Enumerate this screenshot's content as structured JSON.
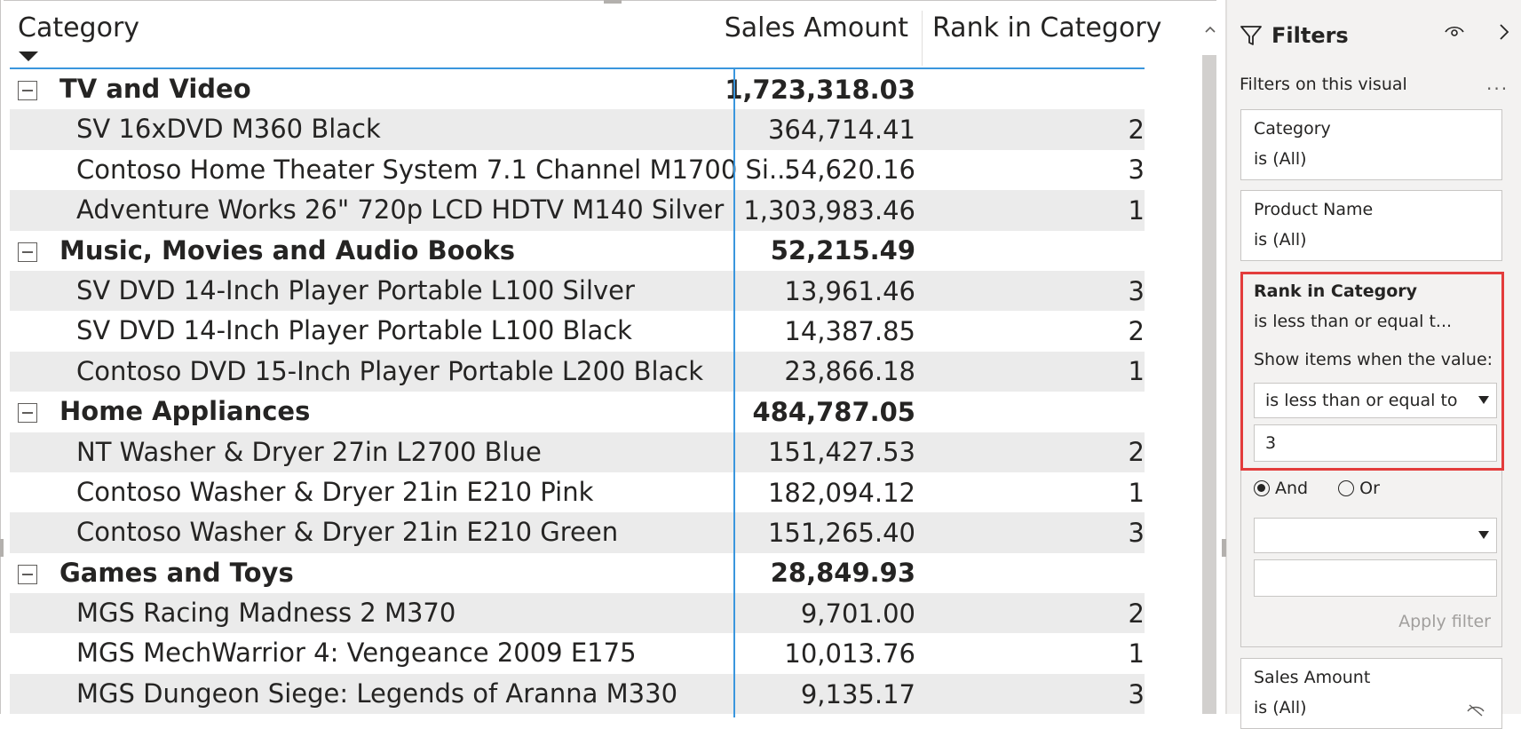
{
  "matrix": {
    "headers": {
      "category": "Category",
      "sales": "Sales Amount",
      "rank": "Rank in Category"
    },
    "rows": [
      {
        "type": "group",
        "name": "TV and Video",
        "sales": "1,723,318.03",
        "rank": ""
      },
      {
        "type": "item",
        "name": "SV 16xDVD M360 Black",
        "sales": "364,714.41",
        "rank": "2"
      },
      {
        "type": "item",
        "name": "Contoso Home Theater System 7.1 Channel M1700 Si...",
        "sales": "54,620.16",
        "rank": "3"
      },
      {
        "type": "item",
        "name": "Adventure Works 26\" 720p LCD HDTV M140 Silver",
        "sales": "1,303,983.46",
        "rank": "1"
      },
      {
        "type": "group",
        "name": "Music, Movies and Audio Books",
        "sales": "52,215.49",
        "rank": ""
      },
      {
        "type": "item",
        "name": "SV DVD 14-Inch Player Portable L100 Silver",
        "sales": "13,961.46",
        "rank": "3"
      },
      {
        "type": "item",
        "name": "SV DVD 14-Inch Player Portable L100 Black",
        "sales": "14,387.85",
        "rank": "2"
      },
      {
        "type": "item",
        "name": "Contoso DVD 15-Inch Player Portable L200 Black",
        "sales": "23,866.18",
        "rank": "1"
      },
      {
        "type": "group",
        "name": "Home Appliances",
        "sales": "484,787.05",
        "rank": ""
      },
      {
        "type": "item",
        "name": "NT Washer & Dryer 27in L2700 Blue",
        "sales": "151,427.53",
        "rank": "2"
      },
      {
        "type": "item",
        "name": "Contoso Washer & Dryer 21in E210 Pink",
        "sales": "182,094.12",
        "rank": "1"
      },
      {
        "type": "item",
        "name": "Contoso Washer & Dryer 21in E210 Green",
        "sales": "151,265.40",
        "rank": "3"
      },
      {
        "type": "group",
        "name": "Games and Toys",
        "sales": "28,849.93",
        "rank": ""
      },
      {
        "type": "item",
        "name": "MGS Racing Madness 2 M370",
        "sales": "9,701.00",
        "rank": "2"
      },
      {
        "type": "item",
        "name": "MGS MechWarrior 4: Vengeance 2009 E175",
        "sales": "10,013.76",
        "rank": "1"
      },
      {
        "type": "item",
        "name": "MGS Dungeon Siege: Legends of Aranna M330",
        "sales": "9,135.17",
        "rank": "3"
      }
    ],
    "accent_color": "#3a96dd"
  },
  "filters": {
    "title": "Filters",
    "subtitle": "Filters on this visual",
    "more": "...",
    "cards": {
      "category": {
        "field": "Category",
        "state": "is (All)"
      },
      "product": {
        "field": "Product Name",
        "state": "is (All)"
      },
      "rank": {
        "field": "Rank in Category",
        "state": "is less than or equal t...",
        "show_label": "Show items when the value:",
        "condition": "is less than or equal to",
        "value": "3",
        "and_label": "And",
        "or_label": "Or",
        "condition2": "",
        "value2": "",
        "apply": "Apply filter"
      },
      "sales": {
        "field": "Sales Amount",
        "state": "is (All)"
      }
    },
    "highlight_color": "#e33c3c"
  }
}
